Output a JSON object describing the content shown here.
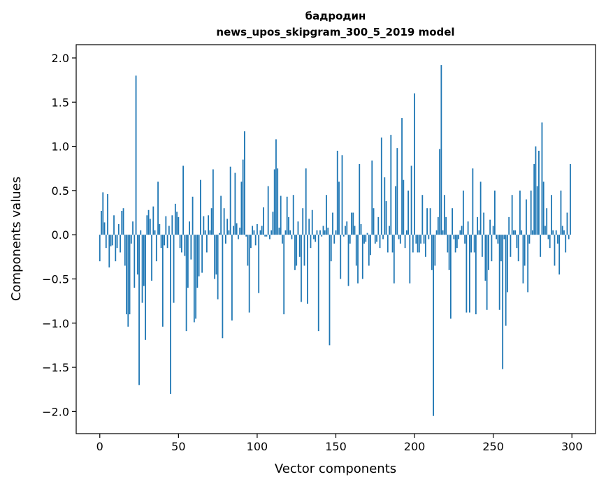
{
  "chart_data": {
    "type": "bar",
    "title": "бадродин",
    "subtitle": "news_upos_skipgram_300_5_2019 model",
    "xlabel": "Vector components",
    "ylabel": "Components values",
    "xlim": [
      -15,
      315
    ],
    "ylim": [
      -2.25,
      2.15
    ],
    "xticks": [
      0,
      50,
      100,
      150,
      200,
      250,
      300
    ],
    "xtick_labels": [
      "0",
      "50",
      "100",
      "150",
      "200",
      "250",
      "300"
    ],
    "yticks": [
      -2.0,
      -1.5,
      -1.0,
      -0.5,
      0.0,
      0.5,
      1.0,
      1.5,
      2.0
    ],
    "ytick_labels": [
      "−2.0",
      "−1.5",
      "−1.0",
      "−0.5",
      "0.0",
      "0.5",
      "1.0",
      "1.5",
      "2.0"
    ],
    "bar_color": "#1f77b4",
    "grid": false,
    "values": [
      -0.3,
      0.27,
      0.48,
      0.14,
      -0.15,
      0.46,
      -0.37,
      -0.13,
      -0.12,
      0.22,
      -0.3,
      -0.15,
      0.12,
      -0.2,
      0.27,
      0.3,
      -0.35,
      -0.9,
      -1.04,
      -0.9,
      -0.1,
      0.15,
      -0.6,
      1.8,
      -0.45,
      -1.7,
      0.05,
      -0.77,
      -0.58,
      -1.19,
      0.22,
      0.28,
      0.18,
      -0.52,
      0.32,
      0.05,
      -0.3,
      0.6,
      0.12,
      -0.15,
      -1.04,
      -0.12,
      0.21,
      -0.15,
      0.1,
      -1.8,
      0.22,
      -0.77,
      0.35,
      0.26,
      0.2,
      -0.15,
      -0.2,
      0.78,
      -0.24,
      -1.09,
      -0.6,
      0.15,
      -0.28,
      0.43,
      -0.99,
      -0.95,
      -0.6,
      -0.47,
      0.62,
      -0.43,
      0.21,
      0.05,
      -0.2,
      0.22,
      0.05,
      0.3,
      0.74,
      -0.5,
      -0.45,
      -0.73,
      0.02,
      0.44,
      -1.17,
      0.3,
      -0.1,
      0.18,
      0.05,
      0.77,
      -0.97,
      0.1,
      0.7,
      0.13,
      -0.05,
      0.08,
      0.6,
      0.85,
      1.17,
      -0.02,
      -0.35,
      -0.88,
      -0.15,
      0.1,
      0.05,
      -0.12,
      0.12,
      -0.66,
      0.05,
      0.1,
      0.31,
      -0.02,
      -0.02,
      0.55,
      -0.05,
      0.05,
      0.26,
      0.74,
      1.08,
      0.75,
      0.08,
      0.44,
      -0.1,
      -0.9,
      0.05,
      0.43,
      0.2,
      0.05,
      -0.05,
      0.45,
      -0.4,
      -0.35,
      0.15,
      -0.25,
      -0.76,
      0.3,
      -0.35,
      0.75,
      -0.78,
      0.18,
      -0.15,
      0.28,
      -0.05,
      -0.08,
      0.05,
      -1.09,
      0.05,
      -0.02,
      0.1,
      0.05,
      0.45,
      0.08,
      -1.25,
      -0.3,
      0.25,
      -0.1,
      0.05,
      0.95,
      0.6,
      -0.5,
      0.9,
      -0.02,
      0.1,
      0.15,
      -0.58,
      -0.1,
      0.25,
      0.25,
      0.1,
      -0.35,
      -0.55,
      0.8,
      0.12,
      -0.5,
      -0.1,
      -0.08,
      0.02,
      -0.35,
      -0.23,
      0.84,
      0.3,
      -0.1,
      -0.08,
      0.2,
      -0.15,
      1.1,
      -0.05,
      0.65,
      0.38,
      -0.2,
      0.1,
      1.13,
      -0.2,
      -0.55,
      0.55,
      0.98,
      -0.05,
      -0.1,
      1.32,
      0.62,
      -0.15,
      0.05,
      0.5,
      -0.55,
      0.78,
      -0.2,
      1.6,
      -0.1,
      -0.2,
      -0.2,
      -0.1,
      0.45,
      -0.1,
      -0.25,
      0.3,
      -0.05,
      0.3,
      -0.4,
      -2.05,
      -0.35,
      0.05,
      0.2,
      0.97,
      1.92,
      0.05,
      0.45,
      0.2,
      -0.2,
      -0.4,
      -0.95,
      0.3,
      -0.05,
      -0.2,
      -0.15,
      -0.05,
      0.05,
      0.1,
      0.5,
      -0.1,
      -0.88,
      0.15,
      -0.88,
      -0.2,
      0.75,
      -0.2,
      -0.9,
      0.2,
      0.05,
      0.6,
      -0.25,
      0.25,
      -0.52,
      -0.85,
      -0.4,
      0.17,
      -0.3,
      0.1,
      0.5,
      -0.05,
      -0.1,
      -0.85,
      -0.3,
      -1.52,
      -0.05,
      -1.03,
      -0.65,
      0.2,
      -0.25,
      0.45,
      0.05,
      0.05,
      -0.15,
      -0.3,
      0.5,
      0.05,
      -0.55,
      -0.35,
      0.4,
      -0.65,
      -0.1,
      0.5,
      0.05,
      0.8,
      1.0,
      0.55,
      0.95,
      -0.25,
      1.27,
      0.6,
      0.1,
      0.3,
      -0.05,
      -0.15,
      0.45,
      0.05,
      -0.35,
      0.05,
      -0.1,
      -0.45,
      0.5,
      0.1,
      0.05,
      -0.2,
      0.25,
      -0.05,
      0.8
    ]
  }
}
